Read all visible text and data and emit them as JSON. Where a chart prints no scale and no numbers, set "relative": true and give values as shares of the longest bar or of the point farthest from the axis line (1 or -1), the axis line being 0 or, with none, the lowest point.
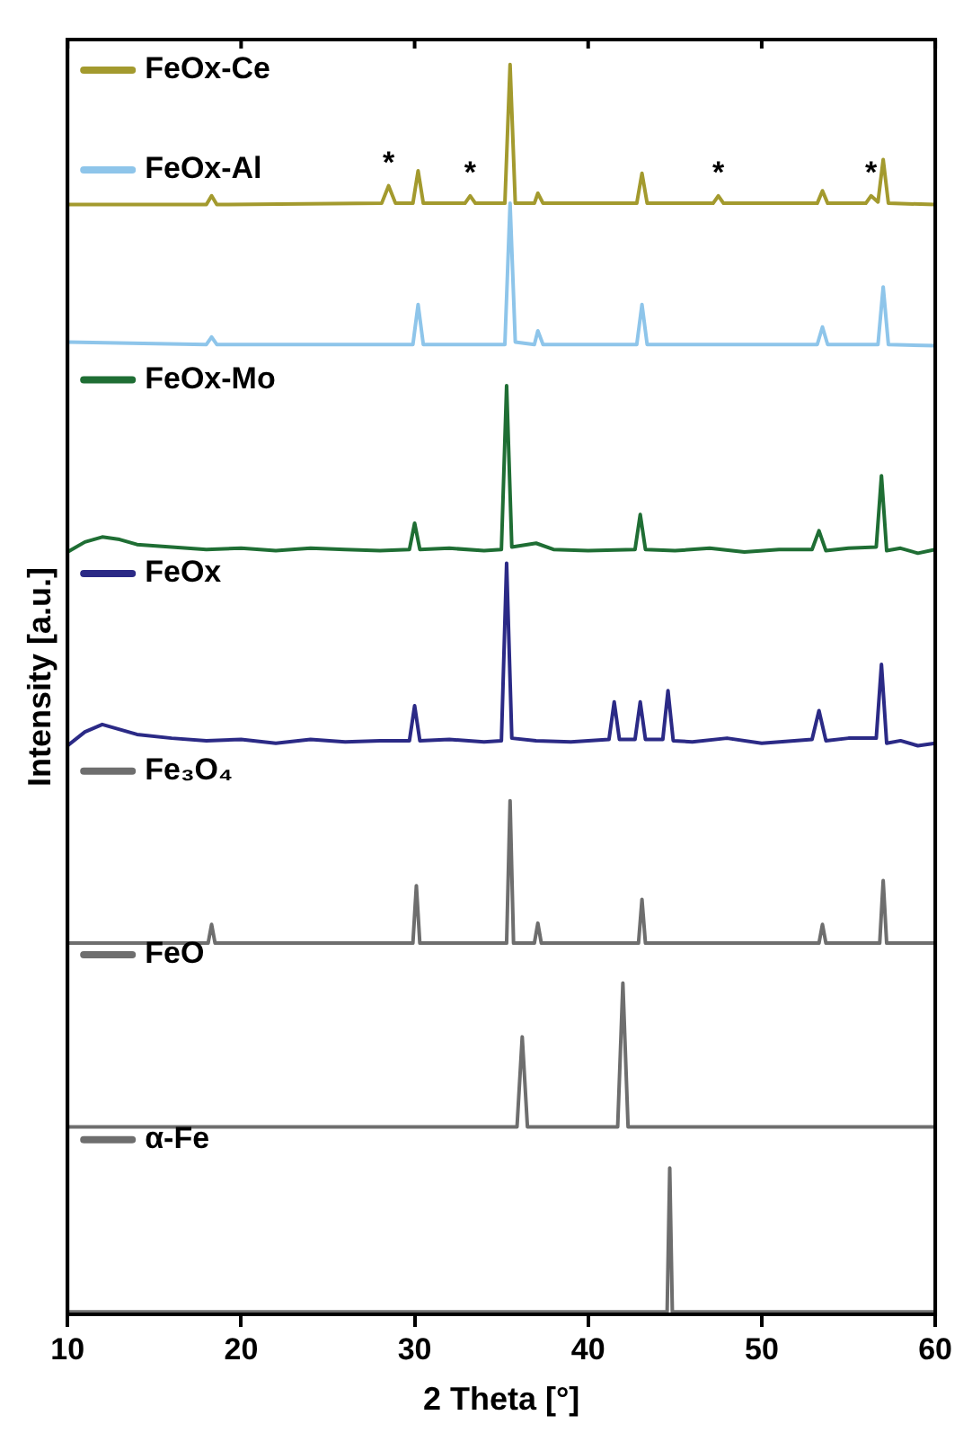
{
  "chart_data": {
    "type": "line",
    "relative": true,
    "xlabel": "2 Theta [°]",
    "ylabel": "Intensity [a.u.]",
    "xlim": [
      10,
      60
    ],
    "xticks": [
      10,
      20,
      30,
      40,
      50,
      60
    ],
    "grid": false,
    "legend": "top left",
    "series": [
      {
        "name": "FeOx-Ce",
        "color": "#a39a2e",
        "x": [
          10,
          18.0,
          18.3,
          18.6,
          28.1,
          28.5,
          28.9,
          29.9,
          30.2,
          30.5,
          32.9,
          33.2,
          33.5,
          35.2,
          35.5,
          35.8,
          36.9,
          37.1,
          37.4,
          42.8,
          43.1,
          43.4,
          47.2,
          47.5,
          47.8,
          53.2,
          53.5,
          53.8,
          56.0,
          56.3,
          56.7,
          57.0,
          57.3,
          60
        ],
        "values": [
          0.888,
          0.888,
          0.895,
          0.888,
          0.889,
          0.903,
          0.889,
          0.889,
          0.915,
          0.889,
          0.889,
          0.895,
          0.889,
          0.889,
          1.0,
          0.889,
          0.889,
          0.897,
          0.889,
          0.889,
          0.913,
          0.889,
          0.889,
          0.895,
          0.889,
          0.889,
          0.899,
          0.889,
          0.889,
          0.895,
          0.89,
          0.924,
          0.889,
          0.888
        ]
      },
      {
        "name": "FeOx-Al",
        "color": "#8ec5ea",
        "x": [
          10,
          18.0,
          18.3,
          18.6,
          29.9,
          30.2,
          30.5,
          35.2,
          35.5,
          35.8,
          36.9,
          37.1,
          37.4,
          42.8,
          43.1,
          43.4,
          53.2,
          53.5,
          53.8,
          56.7,
          57.0,
          57.3,
          60
        ],
        "values": [
          0.778,
          0.776,
          0.782,
          0.776,
          0.776,
          0.808,
          0.776,
          0.776,
          0.889,
          0.778,
          0.776,
          0.787,
          0.776,
          0.776,
          0.808,
          0.776,
          0.776,
          0.79,
          0.776,
          0.776,
          0.822,
          0.776,
          0.775
        ]
      },
      {
        "name": "FeOx-Mo",
        "color": "#1f6e34",
        "x": [
          10,
          11,
          12,
          13,
          14,
          16,
          18,
          20,
          22,
          24,
          26,
          28,
          29.7,
          30.0,
          30.3,
          32,
          34,
          35.0,
          35.3,
          35.6,
          37,
          38,
          40,
          42.7,
          43.0,
          43.3,
          45,
          47,
          49,
          51,
          52.9,
          53.3,
          53.7,
          55,
          56.6,
          56.9,
          57.2,
          58,
          59,
          60
        ],
        "values": [
          0.61,
          0.618,
          0.622,
          0.62,
          0.616,
          0.614,
          0.612,
          0.613,
          0.611,
          0.613,
          0.612,
          0.611,
          0.612,
          0.633,
          0.612,
          0.613,
          0.611,
          0.612,
          0.743,
          0.614,
          0.617,
          0.612,
          0.611,
          0.612,
          0.64,
          0.612,
          0.611,
          0.613,
          0.61,
          0.612,
          0.612,
          0.627,
          0.611,
          0.613,
          0.614,
          0.671,
          0.611,
          0.613,
          0.609,
          0.612
        ]
      },
      {
        "name": "FeOx",
        "color": "#2b2a86",
        "x": [
          10,
          11,
          12,
          13,
          14,
          16,
          18,
          20,
          22,
          24,
          26,
          28,
          29.7,
          30.0,
          30.3,
          32,
          34,
          35.0,
          35.3,
          35.6,
          37,
          39,
          41.2,
          41.5,
          41.8,
          42.7,
          43.0,
          43.3,
          44.3,
          44.6,
          44.9,
          46,
          48,
          50,
          52.9,
          53.3,
          53.7,
          55,
          56.6,
          56.9,
          57.2,
          58,
          59,
          60
        ],
        "values": [
          0.455,
          0.466,
          0.472,
          0.468,
          0.464,
          0.461,
          0.459,
          0.46,
          0.457,
          0.46,
          0.458,
          0.459,
          0.459,
          0.487,
          0.459,
          0.46,
          0.458,
          0.459,
          0.601,
          0.461,
          0.459,
          0.458,
          0.46,
          0.49,
          0.46,
          0.46,
          0.49,
          0.46,
          0.46,
          0.499,
          0.459,
          0.458,
          0.461,
          0.457,
          0.46,
          0.483,
          0.459,
          0.461,
          0.461,
          0.52,
          0.457,
          0.459,
          0.455,
          0.457
        ]
      },
      {
        "name": "Fe₃O₄",
        "color": "#6e6e6e",
        "x": [
          10,
          18.1,
          18.3,
          18.5,
          29.9,
          30.1,
          30.3,
          35.3,
          35.5,
          35.7,
          36.9,
          37.1,
          37.3,
          42.9,
          43.1,
          43.3,
          53.3,
          53.5,
          53.7,
          56.8,
          57.0,
          57.2,
          60
        ],
        "values": [
          0.297,
          0.297,
          0.312,
          0.297,
          0.297,
          0.343,
          0.297,
          0.297,
          0.411,
          0.297,
          0.297,
          0.313,
          0.297,
          0.297,
          0.332,
          0.297,
          0.297,
          0.312,
          0.297,
          0.297,
          0.347,
          0.297,
          0.297
        ]
      },
      {
        "name": "FeO",
        "color": "#6e6e6e",
        "x": [
          10,
          35.9,
          36.2,
          36.5,
          41.7,
          42.0,
          42.3,
          60
        ],
        "values": [
          0.15,
          0.15,
          0.222,
          0.15,
          0.15,
          0.265,
          0.15,
          0.15
        ]
      },
      {
        "name": "α-Fe",
        "color": "#6e6e6e",
        "x": [
          10,
          44.55,
          44.7,
          44.85,
          60
        ],
        "values": [
          0.002,
          0.002,
          0.117,
          0.002,
          0.002
        ]
      }
    ],
    "annotations": [
      {
        "text": "*",
        "x": 28.5,
        "y": 0.903
      },
      {
        "text": "*",
        "x": 33.2,
        "y": 0.895
      },
      {
        "text": "*",
        "x": 47.5,
        "y": 0.895
      },
      {
        "text": "*",
        "x": 56.3,
        "y": 0.895
      }
    ]
  }
}
